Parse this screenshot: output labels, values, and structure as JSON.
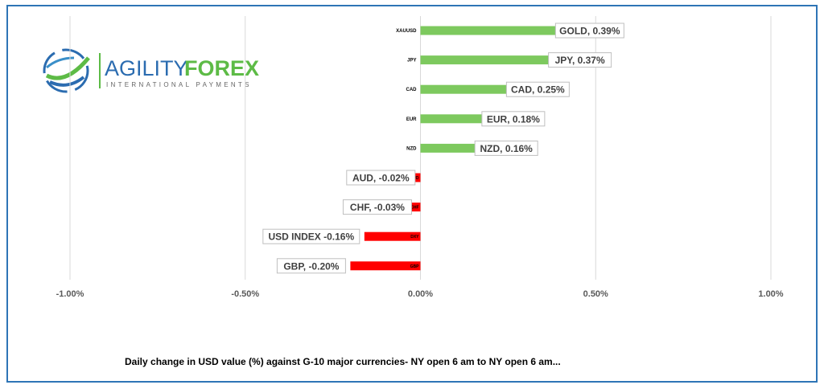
{
  "logo": {
    "name_part1": "AGILITY",
    "name_part2": "FOREX",
    "tagline": "INTERNATIONAL PAYMENTS"
  },
  "colors": {
    "positive": "#7dc95e",
    "negative": "#ff0000",
    "frame": "#2e75b6",
    "grid": "#d9d9d9"
  },
  "chart_data": {
    "type": "bar",
    "orientation": "horizontal",
    "categories": [
      "XAUUSD",
      "JPY",
      "CAD",
      "EUR",
      "NZD",
      "AUD",
      "CHF",
      "DXY",
      "GBP"
    ],
    "values": [
      0.39,
      0.37,
      0.25,
      0.18,
      0.16,
      -0.02,
      -0.03,
      -0.16,
      -0.2
    ],
    "data_labels": [
      "GOLD, 0.39%",
      "JPY, 0.37%",
      "CAD, 0.25%",
      "EUR, 0.18%",
      "NZD, 0.16%",
      "AUD, -0.02%",
      "CHF, -0.03%",
      "USD INDEX -0.16%",
      "GBP, -0.20%"
    ],
    "xlim": [
      -1.0,
      1.0
    ],
    "x_ticks": [
      -1.0,
      -0.5,
      0,
      0.5,
      1.0
    ],
    "x_tick_labels": [
      "-1.00%",
      "-0.50%",
      "0.00%",
      "0.50%",
      "1.00%"
    ],
    "grid": true,
    "title": "Daily change in  USD value (%)  against  G-10 major currencies- NY open 6 am to NY open 6 am..."
  }
}
